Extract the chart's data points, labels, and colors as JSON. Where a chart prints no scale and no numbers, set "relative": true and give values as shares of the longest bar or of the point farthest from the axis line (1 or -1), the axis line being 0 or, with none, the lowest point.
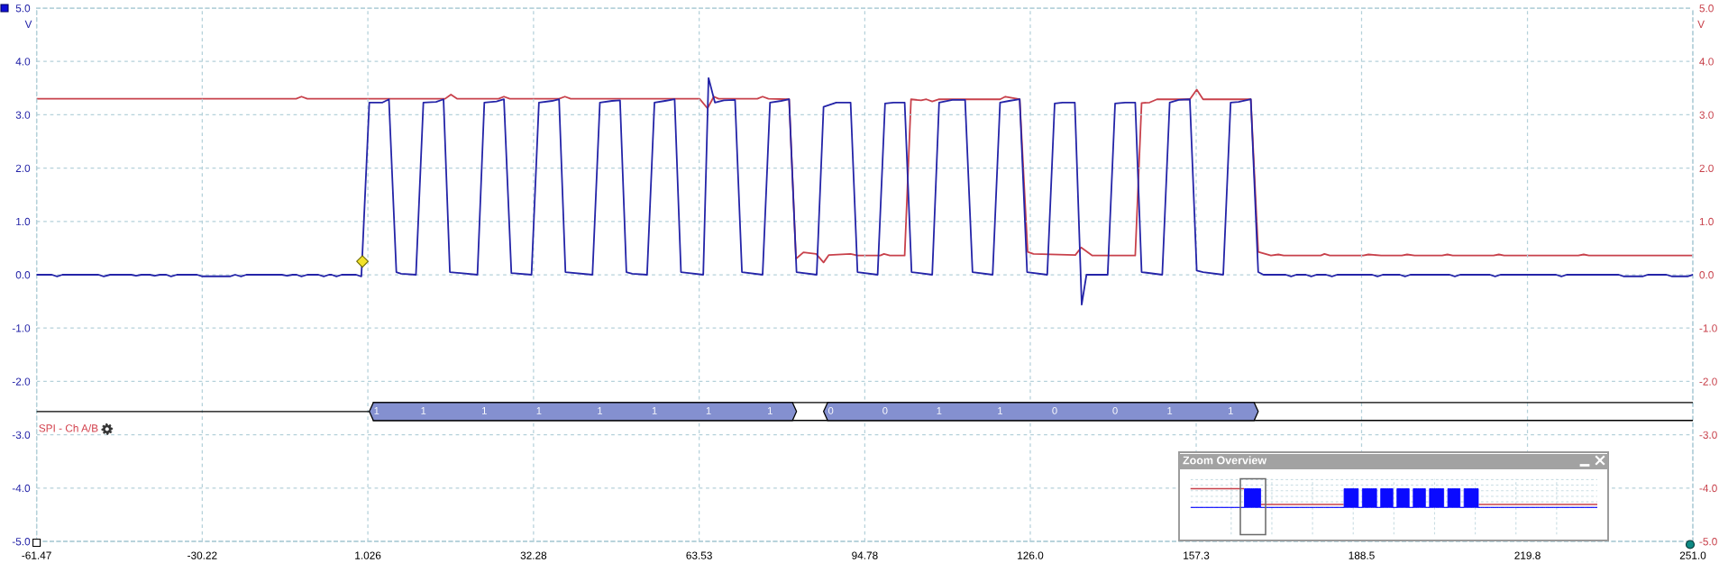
{
  "chart_data": [
    {
      "type": "line",
      "xlim": [
        -61.47,
        251.0
      ],
      "xticks": [
        -61.47,
        -30.22,
        1.026,
        32.28,
        63.53,
        94.78,
        {
          "value": 126.0,
          "label": "126.0"
        },
        {
          "value": 157.3,
          "label": "157.3"
        },
        {
          "value": 188.5,
          "label": "188.5"
        },
        {
          "value": 219.8,
          "label": "219.8"
        },
        {
          "value": 251.0,
          "label": "251.0"
        }
      ],
      "ylim": [
        -5,
        5
      ],
      "yticks": [
        {
          "value": -5,
          "label": "-5.0"
        },
        {
          "value": -4,
          "label": "-4.0"
        },
        {
          "value": -3,
          "label": "-3.0"
        },
        {
          "value": -2,
          "label": "-2.0"
        },
        {
          "value": -1,
          "label": "-1.0"
        },
        {
          "value": 0,
          "label": "0.0"
        },
        {
          "value": 1,
          "label": "1.0"
        },
        {
          "value": 2,
          "label": "2.0"
        },
        {
          "value": 3,
          "label": "3.0"
        },
        {
          "value": 4,
          "label": "4.0"
        },
        {
          "value": 5,
          "label": "5.0"
        }
      ],
      "y2lim": [
        -5,
        5
      ],
      "y2ticks": [
        {
          "value": -5,
          "label": "-5.0"
        },
        {
          "value": -4,
          "label": "-4.0"
        },
        {
          "value": -3,
          "label": "-3.0"
        },
        {
          "value": -2,
          "label": "-2.0"
        },
        {
          "value": -1,
          "label": "-1.0"
        },
        {
          "value": 0,
          "label": "0.0"
        },
        {
          "value": 1,
          "label": "1.0"
        },
        {
          "value": 2,
          "label": "2.0"
        },
        {
          "value": 3,
          "label": "3.0"
        },
        {
          "value": 4,
          "label": "4.0"
        },
        {
          "value": 5,
          "label": "5.0"
        }
      ],
      "ylabel": "V",
      "y2label": "V",
      "grid": true,
      "series": [
        {
          "color": "#2424a8",
          "x": [
            -61.47,
            -58.6,
            -57.6,
            -56.6,
            -49.8,
            -48.8,
            -47.6,
            -43.6,
            -42.7,
            -41.7,
            -40.1,
            -39.2,
            -38.2,
            -37.0,
            -36.1,
            -35.0,
            -31.2,
            -30.2,
            -25.0,
            -24.0,
            -22.9,
            -21.9,
            -15.2,
            -14.2,
            -13.2,
            -12.4,
            -11.5,
            -10.4,
            -8.3,
            -7.3,
            -6.3,
            -5.8,
            -4.9,
            -3.9,
            -1.2,
            -0.2,
            1.3,
            3.8,
            5.0,
            6.4,
            7.3,
            10.1,
            11.5,
            13.9,
            15.3,
            16.5,
            21.7,
            23.0,
            25.3,
            26.7,
            28.1,
            31.9,
            33.3,
            35.8,
            37.1,
            38.3,
            43.4,
            44.8,
            47.1,
            48.6,
            49.8,
            50.9,
            53.7,
            55.1,
            57.1,
            58.9,
            60.1,
            64.3,
            65.3,
            66.5,
            68.2,
            70.3,
            71.6,
            75.5,
            76.9,
            79.0,
            80.5,
            81.9,
            85.7,
            87.0,
            89.4,
            92.1,
            93.4,
            97.2,
            98.6,
            100.2,
            102.3,
            103.6,
            107.5,
            108.8,
            111.3,
            113.7,
            115.1,
            118.9,
            120.3,
            122.0,
            124.0,
            125.4,
            129.2,
            130.6,
            132.1,
            134.4,
            135.7,
            136.6,
            140.6,
            142.0,
            143.9,
            145.8,
            147.0,
            150.9,
            152.3,
            154.0,
            156.1,
            157.4,
            158.6,
            162.4,
            163.8,
            165.3,
            167.6,
            169.0,
            170.0,
            174.2,
            175.2,
            176.2,
            178.0,
            179.0,
            180.0,
            181.8,
            182.9,
            183.9,
            190.5,
            191.5,
            192.5,
            195.7,
            196.7,
            197.7,
            205.1,
            206.1,
            207.1,
            212.7,
            213.7,
            214.7,
            225.2,
            226.2,
            227.2,
            237.0,
            238.0,
            241.5,
            242.5,
            246.0,
            247.1,
            250.0,
            251.0
          ],
          "values": [
            0.0,
            0.0,
            -0.03,
            0.0,
            0.0,
            -0.03,
            0.0,
            0.0,
            -0.02,
            0.0,
            0.0,
            -0.02,
            0.0,
            0.0,
            -0.03,
            0.0,
            0.0,
            -0.03,
            -0.03,
            0.0,
            -0.03,
            0.0,
            0.0,
            -0.02,
            0.0,
            0.0,
            -0.03,
            0.0,
            0.0,
            -0.03,
            0.0,
            0.0,
            -0.03,
            0.0,
            0.0,
            -0.03,
            3.23,
            3.23,
            3.29,
            0.05,
            0.02,
            0.0,
            3.23,
            3.24,
            3.29,
            0.05,
            0.0,
            3.23,
            3.25,
            3.29,
            0.03,
            0.0,
            3.23,
            3.26,
            3.29,
            0.05,
            0.0,
            3.23,
            3.26,
            3.27,
            0.05,
            0.02,
            0.0,
            3.23,
            3.26,
            3.29,
            0.05,
            0.0,
            3.69,
            3.23,
            3.27,
            3.28,
            0.05,
            0.0,
            3.23,
            3.26,
            3.29,
            0.05,
            0.0,
            3.15,
            3.23,
            3.23,
            0.05,
            0.0,
            3.21,
            3.23,
            3.23,
            0.05,
            0.0,
            3.23,
            3.28,
            3.28,
            0.05,
            0.0,
            3.23,
            3.26,
            3.29,
            0.05,
            0.0,
            3.21,
            3.23,
            3.23,
            -0.56,
            0.0,
            0.0,
            3.21,
            3.23,
            3.23,
            0.05,
            0.0,
            3.23,
            3.28,
            3.29,
            0.08,
            0.05,
            0.0,
            3.23,
            3.24,
            3.29,
            0.05,
            0.0,
            0.0,
            -0.03,
            0.0,
            0.0,
            -0.03,
            0.0,
            0.0,
            -0.03,
            0.0,
            0.0,
            -0.03,
            0.0,
            0.0,
            -0.03,
            0.0,
            0.0,
            -0.03,
            0.0,
            0.0,
            -0.03,
            0.0,
            0.0,
            -0.03,
            0.0,
            0.0,
            -0.03,
            -0.03,
            0.0,
            0.0,
            -0.03,
            -0.03,
            0.0
          ]
        },
        {
          "color": "#c8414b",
          "axis": "y2",
          "x": [
            -61.47,
            -12.5,
            -11.5,
            -10.4,
            15.6,
            16.7,
            17.9,
            25.7,
            26.7,
            27.8,
            37.1,
            38.2,
            39.3,
            63.6,
            65.1,
            66.3,
            67.2,
            74.5,
            75.5,
            76.6,
            80.5,
            81.8,
            83.2,
            85.6,
            87.0,
            88.0,
            92.1,
            93.4,
            97.7,
            98.4,
            99.5,
            102.3,
            103.5,
            105.4,
            106.4,
            107.5,
            108.8,
            120.3,
            121.3,
            124.0,
            125.5,
            126.6,
            134.5,
            135.6,
            137.7,
            145.8,
            147.0,
            148.5,
            149.9,
            156.1,
            157.4,
            158.6,
            167.6,
            169.0,
            171.4,
            172.8,
            173.8,
            180.8,
            181.5,
            182.5,
            188.8,
            189.8,
            192.2,
            196.1,
            197.1,
            198.5,
            203.7,
            204.7,
            205.7,
            213.4,
            214.4,
            215.4,
            229.4,
            230.4,
            231.4,
            251.0
          ],
          "values": [
            3.3,
            3.3,
            3.34,
            3.3,
            3.3,
            3.38,
            3.3,
            3.3,
            3.34,
            3.3,
            3.3,
            3.34,
            3.3,
            3.3,
            3.12,
            3.34,
            3.3,
            3.3,
            3.34,
            3.3,
            3.29,
            0.3,
            0.42,
            0.39,
            0.23,
            0.37,
            0.39,
            0.36,
            0.36,
            0.39,
            0.36,
            0.36,
            3.29,
            3.27,
            3.29,
            3.25,
            3.29,
            3.29,
            3.34,
            3.29,
            0.43,
            0.39,
            0.37,
            0.51,
            0.36,
            0.36,
            3.22,
            3.23,
            3.29,
            3.29,
            3.47,
            3.29,
            3.29,
            0.43,
            0.36,
            0.38,
            0.36,
            0.36,
            0.39,
            0.36,
            0.36,
            0.38,
            0.36,
            0.36,
            0.38,
            0.36,
            0.36,
            0.38,
            0.36,
            0.36,
            0.38,
            0.36,
            0.36,
            0.38,
            0.36,
            0.36
          ]
        },
        {
          "type": "scatter",
          "marker": "diamond",
          "color": "#f2e22a",
          "x": [
            0.0
          ],
          "values": [
            0.25
          ]
        }
      ],
      "annotations": [
        "SPI - Ch A/B",
        "1",
        "1",
        "1",
        "1",
        "1",
        "1",
        "1",
        "1",
        "0",
        "0",
        "1",
        "1",
        "0",
        "0",
        "1",
        "1"
      ]
    },
    {
      "type": "line",
      "title": "Zoom Overview",
      "relative": true,
      "grid": true,
      "categories": [
        null,
        null,
        null,
        null,
        null,
        null,
        null,
        null,
        null,
        null,
        null,
        null,
        null,
        null,
        null,
        null,
        null,
        null,
        null,
        null,
        null,
        null,
        null,
        null,
        null,
        null,
        null,
        null,
        null,
        null,
        null,
        null,
        null,
        null,
        null,
        null,
        null,
        null,
        null,
        null,
        null,
        null,
        null,
        null,
        null,
        null,
        null,
        null,
        null,
        null,
        null,
        null,
        null,
        null,
        null,
        null,
        null,
        null,
        null,
        null,
        null,
        null,
        null,
        null,
        null,
        null,
        null,
        null,
        null,
        null,
        null,
        null,
        null,
        null,
        null,
        null,
        null,
        null,
        null,
        null,
        null,
        null,
        null,
        null,
        null,
        null,
        null,
        null,
        null,
        null,
        null,
        null,
        null,
        null,
        null,
        null,
        null,
        null,
        null,
        null,
        null,
        null,
        null,
        null,
        null,
        null,
        null,
        null,
        null,
        null,
        null,
        null,
        null,
        null,
        null,
        null,
        null,
        null,
        null,
        null,
        null,
        null,
        null,
        null,
        null,
        null,
        null,
        null,
        null,
        null,
        null,
        null,
        null,
        null,
        null,
        null,
        null,
        null,
        null,
        null,
        null,
        null,
        null,
        null,
        null,
        null,
        null,
        null,
        null,
        null,
        null,
        null,
        null,
        null,
        null,
        null,
        null,
        null,
        null,
        null,
        null,
        null,
        null,
        null,
        null,
        null,
        null,
        null,
        null,
        null,
        null,
        null,
        null,
        null,
        null,
        null,
        null,
        null,
        null,
        null,
        null,
        null,
        null,
        null,
        null,
        null,
        null,
        null,
        null,
        null,
        null,
        null,
        null,
        null,
        null,
        null,
        null,
        null,
        null,
        null,
        null
      ],
      "series": [
        {
          "color": "#c8414b",
          "values": [
            1,
            1,
            1,
            1,
            1,
            1,
            1,
            1,
            1,
            1,
            1,
            1,
            1,
            1,
            1,
            1,
            1,
            1,
            1,
            1,
            1,
            1,
            1,
            1,
            1,
            1,
            1,
            null,
            null,
            null,
            null,
            null,
            null,
            null,
            null,
            0.16,
            0.16,
            0.16,
            0.16,
            0.16,
            0.16,
            0.16,
            0.16,
            0.16,
            0.16,
            0.16,
            0.16,
            0.16,
            0.16,
            0.16,
            0.16,
            0.16,
            0.16,
            0.16,
            0.16,
            0.16,
            0.16,
            0.16,
            0.16,
            0.16,
            0.16,
            0.16,
            0.16,
            0.16,
            0.16,
            0.16,
            0.16,
            0.16,
            0.16,
            0.16,
            0.16,
            0.16,
            0.16,
            0.16,
            0.16,
            0.16,
            null,
            null,
            null,
            null,
            null,
            null,
            null,
            null,
            null,
            null,
            null,
            null,
            null,
            null,
            null,
            null,
            null,
            null,
            null,
            null,
            null,
            null,
            null,
            null,
            null,
            null,
            null,
            null,
            null,
            null,
            null,
            null,
            null,
            null,
            null,
            null,
            null,
            null,
            null,
            null,
            null,
            null,
            null,
            null,
            null,
            null,
            null,
            null,
            null,
            null,
            null,
            null,
            null,
            null,
            null,
            null,
            null,
            null,
            null,
            null,
            null,
            null,
            null,
            null,
            null,
            null,
            0.16,
            0.16,
            0.16,
            0.16,
            0.16,
            0.16,
            0.16,
            0.16,
            0.16,
            0.16,
            0.16,
            0.16,
            0.16,
            0.16,
            0.16,
            0.16,
            0.16,
            0.16,
            0.16,
            0.16,
            0.16,
            0.16,
            0.16,
            0.16,
            0.16,
            0.16,
            0.16,
            0.16,
            0.16,
            0.16,
            0.16,
            0.16,
            0.16,
            0.16,
            0.16,
            0.16,
            0.16,
            0.16,
            0.16,
            0.16,
            0.16,
            0.16,
            0.16,
            0.16,
            0.16,
            0.16,
            0.16,
            0.16,
            0.16,
            0.16,
            0.16,
            0.16,
            0.16,
            0.16,
            0.16,
            0.16,
            0.16,
            0.16,
            0.16
          ]
        },
        {
          "type": "area",
          "color": "#0a0aff",
          "values": [
            0,
            0,
            0,
            0,
            0,
            0,
            0,
            0,
            0,
            0,
            0,
            0,
            0,
            0,
            0,
            0,
            0,
            0,
            0,
            0,
            0,
            0,
            0,
            0,
            0,
            0,
            0,
            1,
            1,
            1,
            1,
            1,
            1,
            1,
            1,
            0,
            0,
            0,
            0,
            0,
            0,
            0,
            0,
            0,
            0,
            0,
            0,
            0,
            0,
            0,
            0,
            0,
            0,
            0,
            0,
            0,
            0,
            0,
            0,
            0,
            0,
            0,
            0,
            0,
            0,
            0,
            0,
            0,
            0,
            0,
            0,
            0,
            0,
            0,
            0,
            0,
            1,
            1,
            1,
            1,
            1,
            1,
            1,
            0,
            0,
            1,
            1,
            1,
            1,
            1,
            1,
            1,
            0,
            0,
            1,
            1,
            1,
            1,
            1,
            1,
            0,
            0,
            1,
            1,
            1,
            1,
            1,
            1,
            0,
            0,
            1,
            1,
            1,
            1,
            1,
            1,
            0,
            0,
            1,
            1,
            1,
            1,
            1,
            1,
            1,
            0,
            0,
            1,
            1,
            1,
            1,
            1,
            1,
            0,
            0,
            1,
            1,
            1,
            1,
            1,
            1,
            1,
            0,
            0,
            0,
            0,
            0,
            0,
            0,
            0,
            0,
            0,
            0,
            0,
            0,
            0,
            0,
            0,
            0,
            0,
            0,
            0,
            0,
            0,
            0,
            0,
            0,
            0,
            0,
            0,
            0,
            0,
            0,
            0,
            0,
            0,
            0,
            0,
            0,
            0,
            0,
            0,
            0,
            0,
            0,
            0,
            0,
            0,
            0,
            0,
            0,
            0,
            0,
            0,
            0,
            0,
            0,
            0,
            0,
            0,
            0
          ]
        }
      ]
    }
  ]
}
